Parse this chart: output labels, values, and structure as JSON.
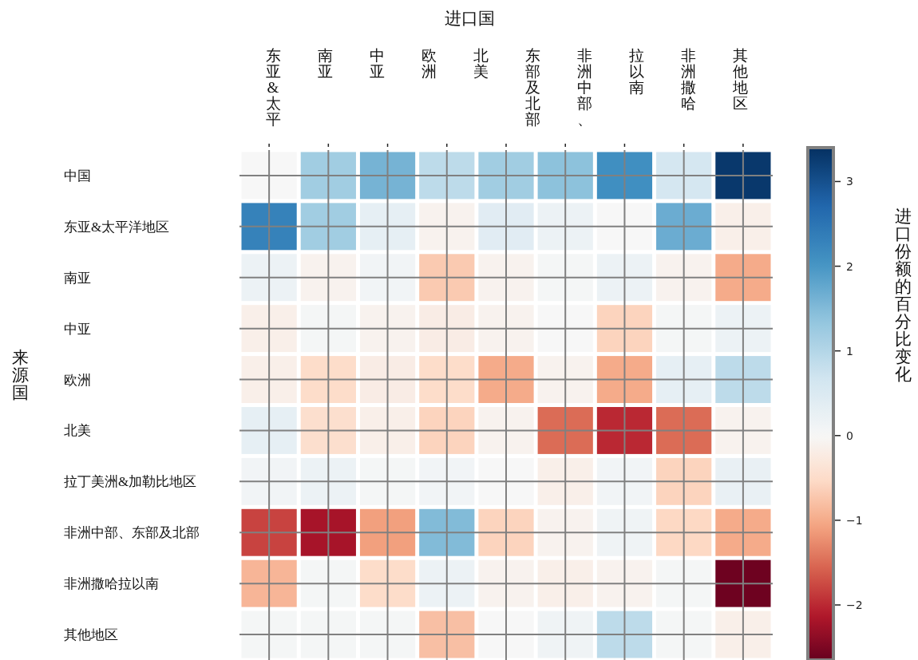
{
  "chart_data": {
    "type": "heatmap",
    "title": "进口国",
    "ylabel": "来源国",
    "clabel": "进口份额的百分比变化",
    "annotations": [
      "东亚&太平",
      "南亚",
      "中亚",
      "欧洲",
      "北美",
      "东部及北部",
      "非洲中部、",
      "拉以南",
      "非洲撒哈",
      "其他地区"
    ],
    "categories": [
      null,
      null,
      null,
      null,
      null,
      null,
      null,
      null,
      null
    ],
    "y_categories": [
      "中国",
      "东亚&太平洋地区",
      "南亚",
      "中亚",
      "欧洲",
      "北美",
      "拉丁美洲&加勒比地区",
      "非洲中部、东部及北部",
      "非洲撒哈拉以南",
      "其他地区"
    ],
    "cells": [
      [
        0.0,
        1.2,
        1.6,
        0.9,
        1.2,
        1.4,
        2.1,
        0.6,
        3.3
      ],
      [
        2.3,
        1.2,
        0.3,
        -0.1,
        0.4,
        0.2,
        0.0,
        1.7,
        -0.15
      ],
      [
        0.2,
        -0.1,
        0.1,
        -0.7,
        -0.1,
        0.05,
        0.2,
        -0.1,
        -1.0
      ],
      [
        -0.15,
        0.05,
        -0.1,
        -0.2,
        -0.1,
        0.0,
        -0.6,
        0.05,
        0.2
      ],
      [
        -0.15,
        -0.5,
        -0.2,
        -0.5,
        -1.0,
        -0.1,
        -1.0,
        0.3,
        0.9
      ],
      [
        0.3,
        -0.45,
        -0.15,
        -0.6,
        -0.1,
        -1.5,
        -2.0,
        -1.5,
        -0.1
      ],
      [
        0.1,
        0.2,
        0.05,
        0.1,
        0.0,
        -0.15,
        0.1,
        -0.6,
        0.25
      ],
      [
        -1.8,
        -2.2,
        -1.1,
        1.5,
        -0.6,
        -0.1,
        0.15,
        -0.55,
        -1.0
      ],
      [
        -0.9,
        0.05,
        -0.5,
        0.2,
        -0.1,
        -0.15,
        -0.1,
        0.05,
        -2.6
      ],
      [
        0.05,
        0.05,
        0.05,
        -0.8,
        0.0,
        0.15,
        0.9,
        0.05,
        -0.15
      ]
    ],
    "clim": [
      -2.65,
      3.4
    ],
    "cticks": [
      {
        "value": -2,
        "label": "−2"
      },
      {
        "value": -1,
        "label": "−1"
      },
      0,
      1,
      2,
      3
    ],
    "grid": true
  }
}
